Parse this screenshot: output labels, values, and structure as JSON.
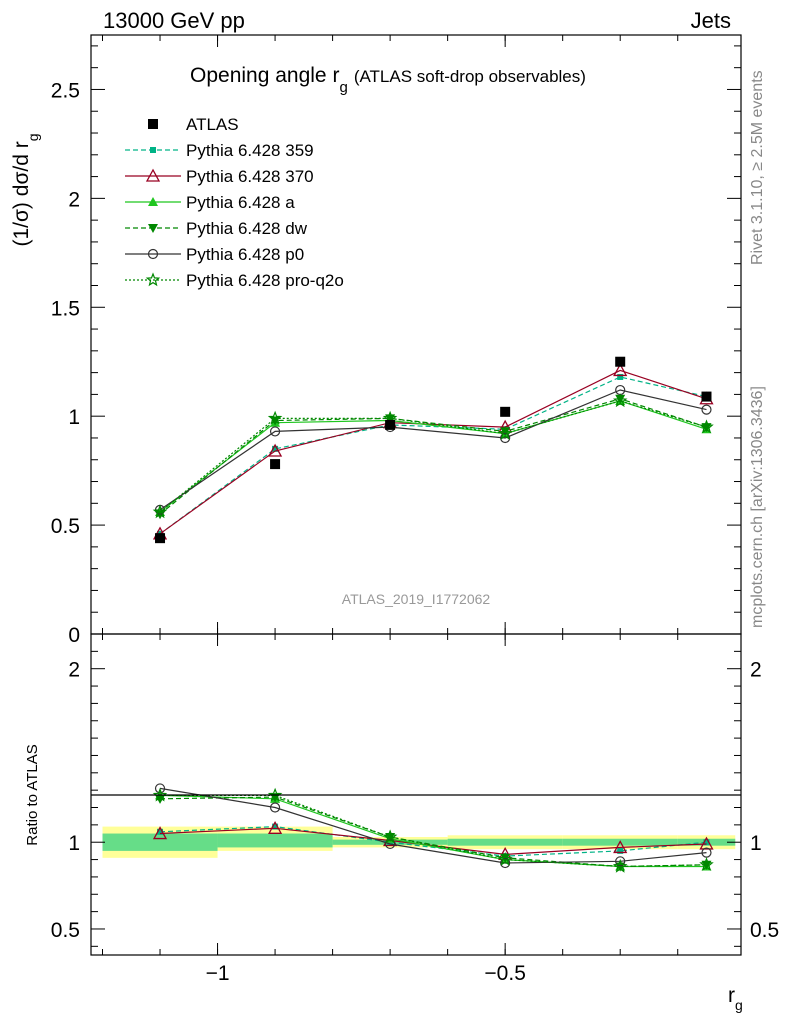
{
  "header": {
    "left": "13000 GeV pp",
    "right": "Jets",
    "side_top": "Rivet 3.1.10, ≥ 2.5M events",
    "side_bottom": "mcplots.cern.ch [arXiv:1306.3436]"
  },
  "chart_data": {
    "type": "line",
    "title": "Opening angle",
    "title_symbol": "r",
    "title_subscript": "g",
    "subtitle": "(ATLAS soft-drop observables)",
    "ylabel": "(1/σ) dσ/d r",
    "ylabel_subscript": "g",
    "xlabel": "r",
    "xlabel_subscript": "g",
    "watermark": "ATLAS_2019_I1772062",
    "ratio_ylabel": "Ratio to ATLAS",
    "xlim": [
      -1.22,
      -0.09
    ],
    "ylim_main": [
      0,
      2.75
    ],
    "ylim_ratio": [
      0.35,
      2.2
    ],
    "x_ticks": [
      {
        "v": -1.0,
        "label": "−1"
      },
      {
        "v": -0.5,
        "label": "−0.5"
      }
    ],
    "y_ticks_main": [
      {
        "v": 0.5,
        "label": "0.5"
      },
      {
        "v": 1.0,
        "label": "1"
      },
      {
        "v": 1.5,
        "label": "1.5"
      },
      {
        "v": 2.0,
        "label": "2"
      },
      {
        "v": 2.5,
        "label": "2.5"
      },
      {
        "v": 0,
        "label": "0"
      }
    ],
    "y_ticks_ratio": [
      {
        "v": 0.5,
        "label": "0.5"
      },
      {
        "v": 1.0,
        "label": "1"
      },
      {
        "v": 2.0,
        "label": "2"
      }
    ],
    "bin_edges": [
      -1.2,
      -1.0,
      -0.8,
      -0.6,
      -0.4,
      -0.2,
      -0.1
    ],
    "x": [
      -1.1,
      -0.9,
      -0.7,
      -0.5,
      -0.3,
      -0.15
    ],
    "data": {
      "name": "ATLAS",
      "values": [
        0.44,
        0.78,
        0.96,
        1.02,
        1.25,
        1.09
      ]
    },
    "band": {
      "outer": [
        [
          0.91,
          1.09
        ],
        [
          0.95,
          1.09
        ],
        [
          0.97,
          1.03
        ],
        [
          0.96,
          1.04
        ],
        [
          0.96,
          1.04
        ],
        [
          0.96,
          1.04
        ]
      ],
      "inner": [
        [
          0.95,
          1.05
        ],
        [
          0.97,
          1.05
        ],
        [
          0.985,
          1.015
        ],
        [
          0.98,
          1.02
        ],
        [
          0.98,
          1.02
        ],
        [
          0.98,
          1.02
        ]
      ]
    },
    "series": [
      {
        "name": "Pythia 6.428 359",
        "values": [
          0.46,
          0.85,
          0.96,
          0.94,
          1.18,
          1.09
        ],
        "ratio": [
          1.06,
          1.09,
          1.0,
          0.92,
          0.95,
          1.0
        ],
        "color": "#00b386",
        "dash": "5,3",
        "marker": "square-small"
      },
      {
        "name": "Pythia 6.428 370",
        "values": [
          0.46,
          0.84,
          0.97,
          0.95,
          1.21,
          1.08
        ],
        "ratio": [
          1.05,
          1.08,
          1.01,
          0.93,
          0.97,
          0.99
        ],
        "color": "#990022",
        "dash": "",
        "marker": "triangle-open"
      },
      {
        "name": "Pythia 6.428 a",
        "values": [
          0.56,
          0.97,
          0.98,
          0.92,
          1.07,
          0.94
        ],
        "ratio": [
          1.27,
          1.25,
          1.02,
          0.9,
          0.86,
          0.86
        ],
        "color": "#1fc61f",
        "dash": "",
        "marker": "triangle"
      },
      {
        "name": "Pythia 6.428 dw",
        "values": [
          0.55,
          0.98,
          0.99,
          0.93,
          1.08,
          0.95
        ],
        "ratio": [
          1.25,
          1.26,
          1.03,
          0.91,
          0.86,
          0.87
        ],
        "color": "#008800",
        "dash": "5,3",
        "marker": "triangle-down"
      },
      {
        "name": "Pythia 6.428 p0",
        "values": [
          0.57,
          0.93,
          0.95,
          0.9,
          1.12,
          1.03
        ],
        "ratio": [
          1.31,
          1.2,
          0.99,
          0.88,
          0.89,
          0.94
        ],
        "color": "#333333",
        "dash": "",
        "marker": "circle-open"
      },
      {
        "name": "Pythia 6.428 pro-q2o",
        "values": [
          0.56,
          0.99,
          0.99,
          0.92,
          1.07,
          0.95
        ],
        "ratio": [
          1.27,
          1.27,
          1.03,
          0.9,
          0.86,
          0.87
        ],
        "color": "#008800",
        "dash": "2,2",
        "marker": "star"
      }
    ]
  }
}
